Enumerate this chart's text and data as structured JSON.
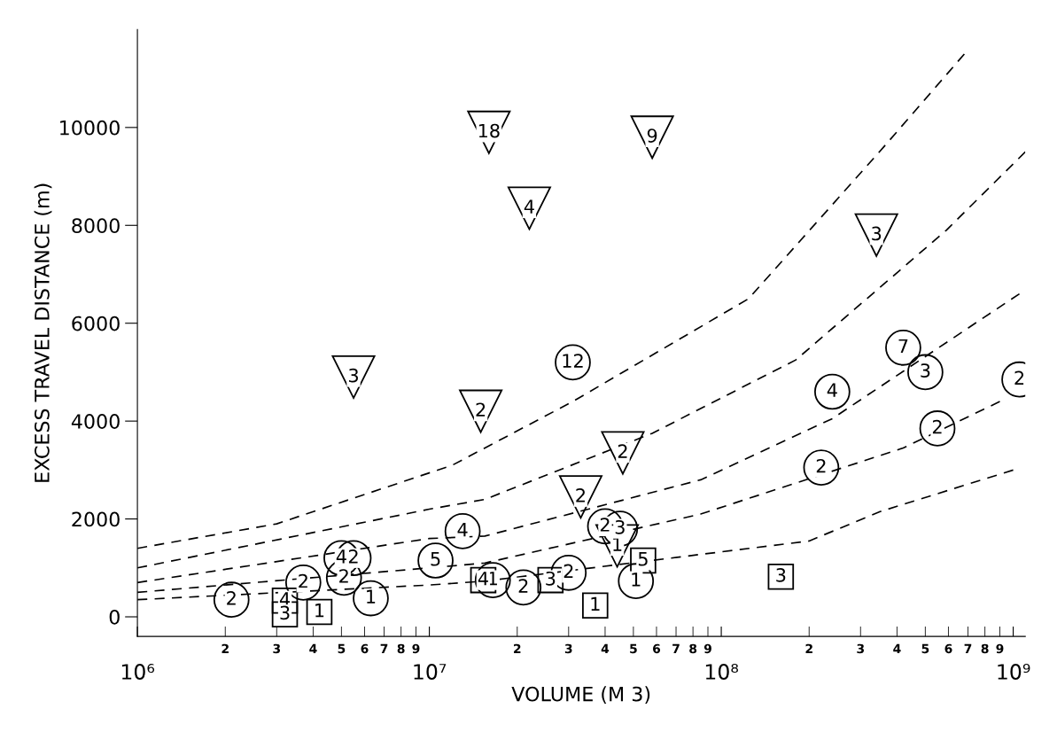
{
  "chart_data": {
    "type": "scatter",
    "xlabel": "VOLUME (M 3)",
    "ylabel": "EXCESS TRAVEL DISTANCE (m)",
    "log": "x",
    "xlim": [
      1000000,
      1100000000
    ],
    "ylim": [
      -400,
      12000
    ],
    "xticks": [
      {
        "value": 1000000,
        "label": "10⁶"
      },
      {
        "value": 10000000,
        "label": "10⁷"
      },
      {
        "value": 100000000,
        "label": "10⁸"
      },
      {
        "value": 1000000000,
        "label": "10⁹"
      }
    ],
    "yticks": [
      0,
      2000,
      4000,
      6000,
      8000,
      10000
    ],
    "grid": false,
    "series": [
      {
        "marker": "triangle",
        "color": "#000000",
        "x": [
          16000000,
          58000000,
          22000000,
          5500000,
          15000000,
          46000000,
          33000000,
          44000000,
          340000000
        ],
        "values": [
          9900,
          9800,
          8350,
          4900,
          4200,
          3350,
          2450,
          1450,
          7800
        ]
      },
      {
        "marker": "circle",
        "color": "#000000",
        "x": [
          31000000,
          420000000,
          500000000,
          240000000,
          1050000000,
          550000000,
          220000000,
          40000000,
          45000000,
          51000000,
          30000000,
          21000000,
          16500000,
          13000000,
          10500000,
          5000000,
          5500000,
          5100000,
          3700000,
          6300000,
          2100000
        ],
        "values": [
          5200,
          5500,
          5000,
          4600,
          4850,
          3850,
          3050,
          1850,
          1800,
          730,
          900,
          600,
          750,
          1750,
          1150,
          1200,
          1200,
          800,
          700,
          380,
          350
        ]
      },
      {
        "marker": "square",
        "color": "#000000",
        "x": [
          54000000,
          37000000,
          26000000,
          15300000,
          3200000,
          3200000,
          4200000,
          160000000
        ],
        "values": [
          1150,
          230,
          750,
          750,
          330,
          50,
          100,
          820
        ]
      },
      {
        "type": "line",
        "line_style": "dashed",
        "color": "#000000",
        "x": [
          1000000,
          3000000,
          12000000,
          31000000,
          124000000,
          360000000,
          680000000
        ],
        "values": [
          1400,
          1900,
          3100,
          4400,
          6500,
          9600,
          11500
        ]
      },
      {
        "type": "line",
        "line_style": "dashed",
        "color": "#000000",
        "x": [
          1000000,
          10000000,
          15500000,
          58000000,
          180000000,
          590000000,
          1100000000
        ],
        "values": [
          1000,
          2200,
          2400,
          3750,
          5250,
          7900,
          9500
        ]
      },
      {
        "type": "line",
        "line_style": "dashed",
        "color": "#000000",
        "x": [
          1000000,
          10000000,
          15500000,
          85000000,
          240000000,
          1050000000
        ],
        "values": [
          700,
          1600,
          1650,
          2800,
          4050,
          6600
        ]
      },
      {
        "type": "line",
        "line_style": "dashed",
        "color": "#000000",
        "x": [
          1000000,
          10000000,
          15500000,
          85000000,
          420000000,
          900000000
        ],
        "values": [
          500,
          1000,
          1100,
          2100,
          3450,
          4400
        ]
      },
      {
        "type": "line",
        "line_style": "dashed",
        "color": "#000000",
        "x": [
          1000000,
          10000000,
          15500000,
          200000000,
          350000000,
          1000000000
        ],
        "values": [
          350,
          650,
          730,
          1550,
          2150,
          3000
        ]
      }
    ],
    "annotations": [
      "2",
      "3",
      "4",
      "5",
      "6",
      "7",
      "8",
      "9",
      "2",
      "3",
      "4",
      "5",
      "6",
      "7",
      "8",
      "9",
      "2",
      "3",
      "4",
      "5",
      "6",
      "7",
      "8",
      "9",
      {
        "text": "18",
        "x": 16000000,
        "y": 9900
      },
      {
        "text": "9",
        "x": 58000000,
        "y": 9800
      },
      {
        "text": "4",
        "x": 22000000,
        "y": 8350
      },
      {
        "text": "3",
        "x": 5500000,
        "y": 4900
      },
      {
        "text": "2",
        "x": 15000000,
        "y": 4200
      },
      {
        "text": "2",
        "x": 46000000,
        "y": 3350
      },
      {
        "text": "2",
        "x": 33000000,
        "y": 2450
      },
      {
        "text": "1",
        "x": 44000000,
        "y": 1450
      },
      {
        "text": "3",
        "x": 340000000,
        "y": 7800
      },
      {
        "text": "12",
        "x": 31000000,
        "y": 5200
      },
      {
        "text": "7",
        "x": 420000000,
        "y": 5500
      },
      {
        "text": "3",
        "x": 500000000,
        "y": 5000
      },
      {
        "text": "4",
        "x": 240000000,
        "y": 4600
      },
      {
        "text": "2",
        "x": 1050000000,
        "y": 4850
      },
      {
        "text": "2",
        "x": 550000000,
        "y": 3850
      },
      {
        "text": "2",
        "x": 220000000,
        "y": 3050
      },
      {
        "text": "2",
        "x": 40000000,
        "y": 1850
      },
      {
        "text": "3",
        "x": 45000000,
        "y": 1800
      },
      {
        "text": "1",
        "x": 51000000,
        "y": 730
      },
      {
        "text": "2",
        "x": 30000000,
        "y": 900
      },
      {
        "text": "2",
        "x": 21000000,
        "y": 600
      },
      {
        "text": "1",
        "x": 16500000,
        "y": 750
      },
      {
        "text": "4",
        "x": 13000000,
        "y": 1750
      },
      {
        "text": "5",
        "x": 10500000,
        "y": 1150
      },
      {
        "text": "4",
        "x": 5000000,
        "y": 1200
      },
      {
        "text": "2",
        "x": 5500000,
        "y": 1200
      },
      {
        "text": "2",
        "x": 5100000,
        "y": 800
      },
      {
        "text": "2",
        "x": 3700000,
        "y": 700
      },
      {
        "text": "1",
        "x": 6300000,
        "y": 380
      },
      {
        "text": "2",
        "x": 2100000,
        "y": 350
      },
      {
        "text": "5",
        "x": 54000000,
        "y": 1150
      },
      {
        "text": "1",
        "x": 37000000,
        "y": 230
      },
      {
        "text": "3",
        "x": 26000000,
        "y": 750
      },
      {
        "text": "4",
        "x": 15300000,
        "y": 750
      },
      {
        "text": "4",
        "x": 3200000,
        "y": 330
      },
      {
        "text": "3",
        "x": 3200000,
        "y": 50
      },
      {
        "text": "1",
        "x": 4200000,
        "y": 100
      },
      {
        "text": "3",
        "x": 160000000,
        "y": 820
      }
    ]
  }
}
